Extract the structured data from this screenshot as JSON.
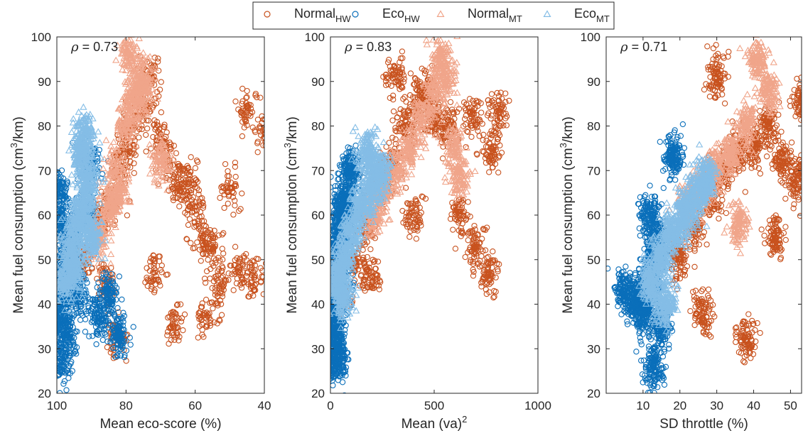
{
  "legend": {
    "items": [
      {
        "base": "Normal",
        "sub": "HW",
        "marker": "circle",
        "color": "#c8521e"
      },
      {
        "base": "Eco",
        "sub": "HW",
        "marker": "circle",
        "color": "#0a6fba"
      },
      {
        "base": "Normal",
        "sub": "MT",
        "marker": "triangle",
        "color": "#f0a58a"
      },
      {
        "base": "Eco",
        "sub": "MT",
        "marker": "triangle",
        "color": "#84bde6"
      }
    ],
    "placement": "top-center"
  },
  "chart_data": [
    {
      "type": "scatter",
      "annotation": {
        "symbol": "ρ",
        "text": "= 0.73"
      },
      "xlabel": {
        "text": "Mean eco-score (%)"
      },
      "ylabel": {
        "pre": "Mean fuel consumption (cm",
        "sup": "3",
        "post": "/km)"
      },
      "xlim": [
        100,
        40
      ],
      "x_reversed": true,
      "ylim": [
        20,
        100
      ],
      "xticks": [
        100,
        80,
        60,
        40
      ],
      "yticks": [
        20,
        30,
        40,
        50,
        60,
        70,
        80,
        90,
        100
      ],
      "grid": false,
      "series": [
        {
          "name": "Normal_HW",
          "color": "#c8521e",
          "marker": "circle",
          "count": 1200,
          "points": [
            [
              92,
              50
            ],
            [
              88,
              58
            ],
            [
              85,
              62
            ],
            [
              82,
              70
            ],
            [
              80,
              75
            ],
            [
              78,
              80
            ],
            [
              75,
              85
            ],
            [
              73,
              91
            ],
            [
              70,
              77
            ],
            [
              68,
              72
            ],
            [
              65,
              66
            ],
            [
              62,
              68
            ],
            [
              60,
              62
            ],
            [
              58,
              55
            ],
            [
              55,
              52
            ],
            [
              53,
              44
            ],
            [
              50,
              66
            ],
            [
              47,
              47
            ],
            [
              45,
              84
            ],
            [
              40,
              79
            ],
            [
              43,
              46
            ],
            [
              57,
              37
            ],
            [
              66,
              35
            ],
            [
              72,
              47
            ],
            [
              86,
              45
            ],
            [
              83,
              33
            ]
          ]
        },
        {
          "name": "Eco_HW",
          "color": "#0a6fba",
          "marker": "circle",
          "count": 1500,
          "points": [
            [
              100,
              36
            ],
            [
              99,
              40
            ],
            [
              98,
              45
            ],
            [
              97,
              50
            ],
            [
              96,
              55
            ],
            [
              99,
              60
            ],
            [
              100,
              66
            ],
            [
              99,
              27
            ],
            [
              97,
              33
            ],
            [
              94,
              42
            ],
            [
              92,
              61
            ],
            [
              90,
              71
            ],
            [
              88,
              37
            ],
            [
              85,
              42
            ],
            [
              82,
              33
            ]
          ]
        },
        {
          "name": "Normal_MT",
          "color": "#f0a58a",
          "marker": "triangle",
          "count": 900,
          "points": [
            [
              85,
              62
            ],
            [
              83,
              70
            ],
            [
              80,
              80
            ],
            [
              78,
              86
            ],
            [
              76,
              90
            ],
            [
              79,
              96
            ],
            [
              75,
              88
            ],
            [
              88,
              55
            ],
            [
              82,
              65
            ],
            [
              70,
              72
            ]
          ]
        },
        {
          "name": "Eco_MT",
          "color": "#84bde6",
          "marker": "triangle",
          "count": 1200,
          "points": [
            [
              98,
              45
            ],
            [
              96,
              52
            ],
            [
              94,
              58
            ],
            [
              92,
              62
            ],
            [
              90,
              55
            ],
            [
              93,
              74
            ],
            [
              92,
              78
            ],
            [
              95,
              48
            ],
            [
              91,
              68
            ]
          ]
        }
      ]
    },
    {
      "type": "scatter",
      "annotation": {
        "symbol": "ρ",
        "text": "= 0.83"
      },
      "xlabel": {
        "pre": "Mean (va)",
        "sup": "2",
        "post": ""
      },
      "ylabel": {
        "pre": "Mean fuel consumption (cm",
        "sup": "3",
        "post": "/km)"
      },
      "xlim": [
        0,
        1000
      ],
      "x_reversed": false,
      "ylim": [
        20,
        100
      ],
      "xticks": [
        0,
        500,
        1000
      ],
      "yticks": [
        20,
        30,
        40,
        50,
        60,
        70,
        80,
        90,
        100
      ],
      "grid": false,
      "series": [
        {
          "name": "Normal_HW",
          "color": "#c8521e",
          "marker": "circle",
          "count": 1200,
          "points": [
            [
              60,
              42
            ],
            [
              120,
              50
            ],
            [
              180,
              58
            ],
            [
              240,
              66
            ],
            [
              300,
              72
            ],
            [
              360,
              80
            ],
            [
              420,
              86
            ],
            [
              460,
              88
            ],
            [
              500,
              82
            ],
            [
              560,
              80
            ],
            [
              620,
              60
            ],
            [
              680,
              82
            ],
            [
              700,
              53
            ],
            [
              760,
              47
            ],
            [
              780,
              74
            ],
            [
              810,
              83
            ],
            [
              310,
              91
            ],
            [
              400,
              60
            ],
            [
              200,
              46
            ]
          ]
        },
        {
          "name": "Eco_HW",
          "color": "#0a6fba",
          "marker": "circle",
          "count": 1500,
          "points": [
            [
              10,
              35
            ],
            [
              20,
              40
            ],
            [
              30,
              45
            ],
            [
              40,
              50
            ],
            [
              50,
              55
            ],
            [
              60,
              60
            ],
            [
              70,
              64
            ],
            [
              20,
              27
            ],
            [
              35,
              30
            ],
            [
              100,
              70
            ]
          ]
        },
        {
          "name": "Normal_MT",
          "color": "#f0a58a",
          "marker": "triangle",
          "count": 900,
          "points": [
            [
              200,
              60
            ],
            [
              260,
              65
            ],
            [
              320,
              70
            ],
            [
              380,
              75
            ],
            [
              440,
              82
            ],
            [
              500,
              88
            ],
            [
              530,
              96
            ],
            [
              560,
              90
            ],
            [
              620,
              68
            ],
            [
              600,
              75
            ]
          ]
        },
        {
          "name": "Eco_MT",
          "color": "#84bde6",
          "marker": "triangle",
          "count": 1200,
          "points": [
            [
              30,
              45
            ],
            [
              60,
              50
            ],
            [
              100,
              56
            ],
            [
              150,
              62
            ],
            [
              200,
              66
            ],
            [
              240,
              70
            ],
            [
              180,
              74
            ],
            [
              60,
              42
            ]
          ]
        }
      ]
    },
    {
      "type": "scatter",
      "annotation": {
        "symbol": "ρ",
        "text": "= 0.71"
      },
      "xlabel": {
        "text": "SD throttle (%)"
      },
      "ylabel": {
        "pre": "Mean fuel consumption (cm",
        "sup": "3",
        "post": "/km)"
      },
      "xlim": [
        0,
        53
      ],
      "x_reversed": false,
      "ylim": [
        20,
        100
      ],
      "xticks": [
        10,
        20,
        30,
        40,
        50
      ],
      "yticks": [
        20,
        30,
        40,
        50,
        60,
        70,
        80,
        90,
        100
      ],
      "grid": false,
      "series": [
        {
          "name": "Normal_HW",
          "color": "#c8521e",
          "marker": "circle",
          "count": 1200,
          "points": [
            [
              20,
              50
            ],
            [
              24,
              58
            ],
            [
              28,
              64
            ],
            [
              32,
              70
            ],
            [
              36,
              74
            ],
            [
              40,
              76
            ],
            [
              44,
              80
            ],
            [
              48,
              72
            ],
            [
              52,
              68
            ],
            [
              30,
              91
            ],
            [
              38,
              32
            ],
            [
              53,
              86
            ],
            [
              26,
              38
            ],
            [
              46,
              55
            ]
          ]
        },
        {
          "name": "Eco_HW",
          "color": "#0a6fba",
          "marker": "circle",
          "count": 1500,
          "points": [
            [
              10,
              38
            ],
            [
              11,
              42
            ],
            [
              12,
              46
            ],
            [
              13,
              50
            ],
            [
              14,
              54
            ],
            [
              12,
              60
            ],
            [
              15,
              35
            ],
            [
              13,
              26
            ],
            [
              8,
              40
            ],
            [
              5,
              43
            ],
            [
              18,
              73
            ]
          ]
        },
        {
          "name": "Normal_MT",
          "color": "#f0a58a",
          "marker": "triangle",
          "count": 900,
          "points": [
            [
              22,
              62
            ],
            [
              26,
              66
            ],
            [
              30,
              70
            ],
            [
              34,
              74
            ],
            [
              38,
              80
            ],
            [
              41,
              95
            ],
            [
              44,
              88
            ],
            [
              36,
              58
            ]
          ]
        },
        {
          "name": "Eco_MT",
          "color": "#84bde6",
          "marker": "triangle",
          "count": 1200,
          "points": [
            [
              12,
              45
            ],
            [
              15,
              50
            ],
            [
              18,
              56
            ],
            [
              21,
              60
            ],
            [
              24,
              64
            ],
            [
              27,
              68
            ],
            [
              16,
              40
            ]
          ]
        }
      ]
    }
  ]
}
